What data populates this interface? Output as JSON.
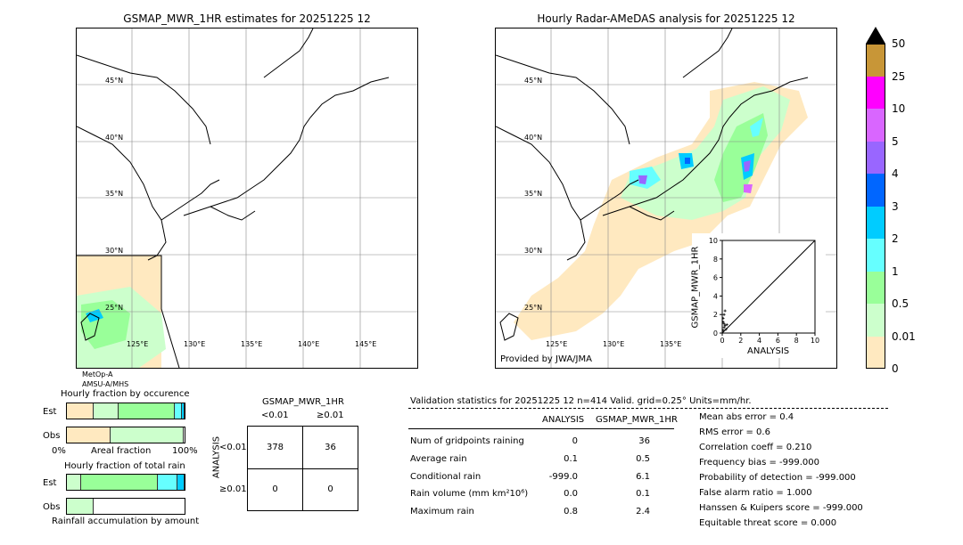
{
  "left_map": {
    "title": "GSMAP_MWR_1HR estimates for 20251225 12",
    "lat_labels": [
      "45°N",
      "40°N",
      "35°N",
      "30°N",
      "25°N"
    ],
    "lon_labels": [
      "125°E",
      "130°E",
      "135°E",
      "140°E",
      "145°E"
    ],
    "satellite_lines": [
      "MetOp-A",
      "AMSU-A/MHS"
    ]
  },
  "right_map": {
    "title": "Hourly Radar-AMeDAS analysis for 20251225 12",
    "lat_labels": [
      "45°N",
      "40°N",
      "35°N",
      "30°N",
      "25°N"
    ],
    "lon_labels": [
      "125°E",
      "130°E",
      "135°E"
    ],
    "credit": "Provided by JWA/JMA"
  },
  "colorbar": {
    "labels": [
      "50",
      "25",
      "10",
      "5",
      "4",
      "3",
      "2",
      "1",
      "0.5",
      "0.01",
      "0"
    ],
    "colors": [
      "#c89637",
      "#ff00ff",
      "#d966ff",
      "#9966ff",
      "#0066ff",
      "#00ccff",
      "#66ffff",
      "#99ff99",
      "#ccffcc",
      "#ffe9c0"
    ]
  },
  "occurrence_chart": {
    "title": "Hourly fraction by occurence",
    "rows": [
      "Est",
      "Obs"
    ],
    "axis_left": "0%",
    "axis_mid": "Areal fraction",
    "axis_right": "100%"
  },
  "total_rain_chart": {
    "title": "Hourly fraction of total rain",
    "rows": [
      "Est",
      "Obs"
    ],
    "footer": "Rainfall accumulation by amount"
  },
  "contingency": {
    "title": "GSMAP_MWR_1HR",
    "col_headers": [
      "<0.01",
      "≥0.01"
    ],
    "row_headers": [
      "<0.01",
      "≥0.01"
    ],
    "side_label": "ANALYSIS",
    "cells": [
      [
        "378",
        "36"
      ],
      [
        "0",
        "0"
      ]
    ]
  },
  "validation": {
    "header": "Validation statistics for 20251225 12  n=414 Valid. grid=0.25° Units=mm/hr.",
    "col_analysis": "ANALYSIS",
    "col_est": "GSMAP_MWR_1HR",
    "rows": [
      {
        "label": "Num of gridpoints raining",
        "a": "0",
        "e": "36"
      },
      {
        "label": "Average rain",
        "a": "0.1",
        "e": "0.5"
      },
      {
        "label": "Conditional rain",
        "a": "-999.0",
        "e": "6.1"
      },
      {
        "label": "Rain volume (mm km²10⁶)",
        "a": "0.0",
        "e": "0.1"
      },
      {
        "label": "Maximum rain",
        "a": "0.8",
        "e": "2.4"
      }
    ],
    "scores": [
      "Mean abs error =    0.4",
      "RMS error =    0.6",
      "Correlation coeff =  0.210",
      "Frequency bias = -999.000",
      "Probability of detection = -999.000",
      "False alarm ratio =  1.000",
      "Hanssen & Kuipers score = -999.000",
      "Equitable threat score =  0.000"
    ]
  },
  "chart_data": {
    "type": "scatter",
    "xlabel": "ANALYSIS",
    "ylabel": "GSMAP_MWR_1HR",
    "xlim": [
      0,
      10
    ],
    "ylim": [
      0,
      10
    ],
    "ticks": [
      "0",
      "2",
      "4",
      "6",
      "8",
      "10"
    ],
    "x": [
      0.1,
      0.2,
      0.1,
      0.3,
      0.2,
      0.4,
      0.1,
      0.5,
      0.3,
      0.2
    ],
    "y": [
      0.3,
      0.6,
      1.2,
      0.8,
      2.0,
      0.4,
      1.6,
      0.9,
      2.4,
      1.0
    ]
  }
}
